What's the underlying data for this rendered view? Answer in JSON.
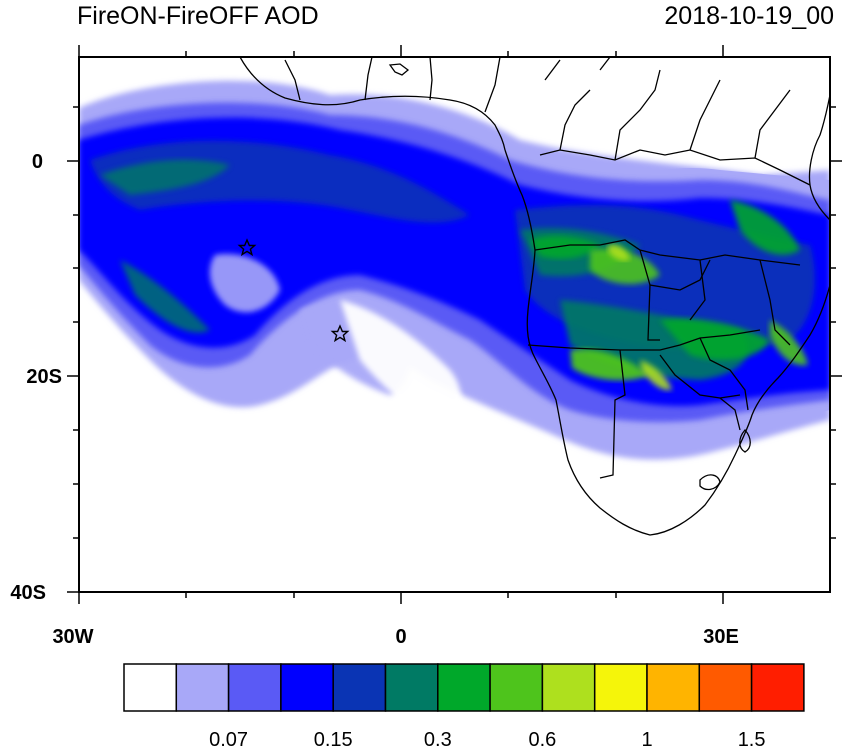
{
  "header": {
    "title": "FireON-FireOFF AOD",
    "timestamp": "2018-10-19_00"
  },
  "map": {
    "region": "South Atlantic / Southern Africa",
    "variable": "AOD difference",
    "lon_range": [
      -30,
      40
    ],
    "lat_range": [
      -40,
      10
    ],
    "lon_tick_labels": [
      {
        "lon": -30,
        "label": "30W"
      },
      {
        "lon": 0,
        "label": "0"
      },
      {
        "lon": 30,
        "label": "30E"
      }
    ],
    "lat_tick_labels": [
      {
        "lat": 0,
        "label": "0"
      },
      {
        "lat": -20,
        "label": "20S"
      },
      {
        "lat": -40,
        "label": "40S"
      }
    ],
    "markers": [
      {
        "type": "star",
        "lon": -14.4,
        "lat": -8.0
      },
      {
        "type": "star",
        "lon": -5.7,
        "lat": -15.9
      }
    ]
  },
  "colorbar": {
    "colors": [
      "#ffffff",
      "#a8a8f8",
      "#5a5af5",
      "#0000ff",
      "#0a34b4",
      "#007a64",
      "#00a82a",
      "#4ec41c",
      "#aee01e",
      "#f5f50a",
      "#ffb400",
      "#ff5a00",
      "#ff1e00"
    ],
    "labels": [
      {
        "boundary": 2,
        "text": "0.07"
      },
      {
        "boundary": 4,
        "text": "0.15"
      },
      {
        "boundary": 6,
        "text": "0.3"
      },
      {
        "boundary": 8,
        "text": "0.6"
      },
      {
        "boundary": 10,
        "text": "1"
      },
      {
        "boundary": 12,
        "text": "1.5"
      }
    ]
  },
  "colors": {
    "land_outline": "#000000",
    "background": "#ffffff"
  }
}
